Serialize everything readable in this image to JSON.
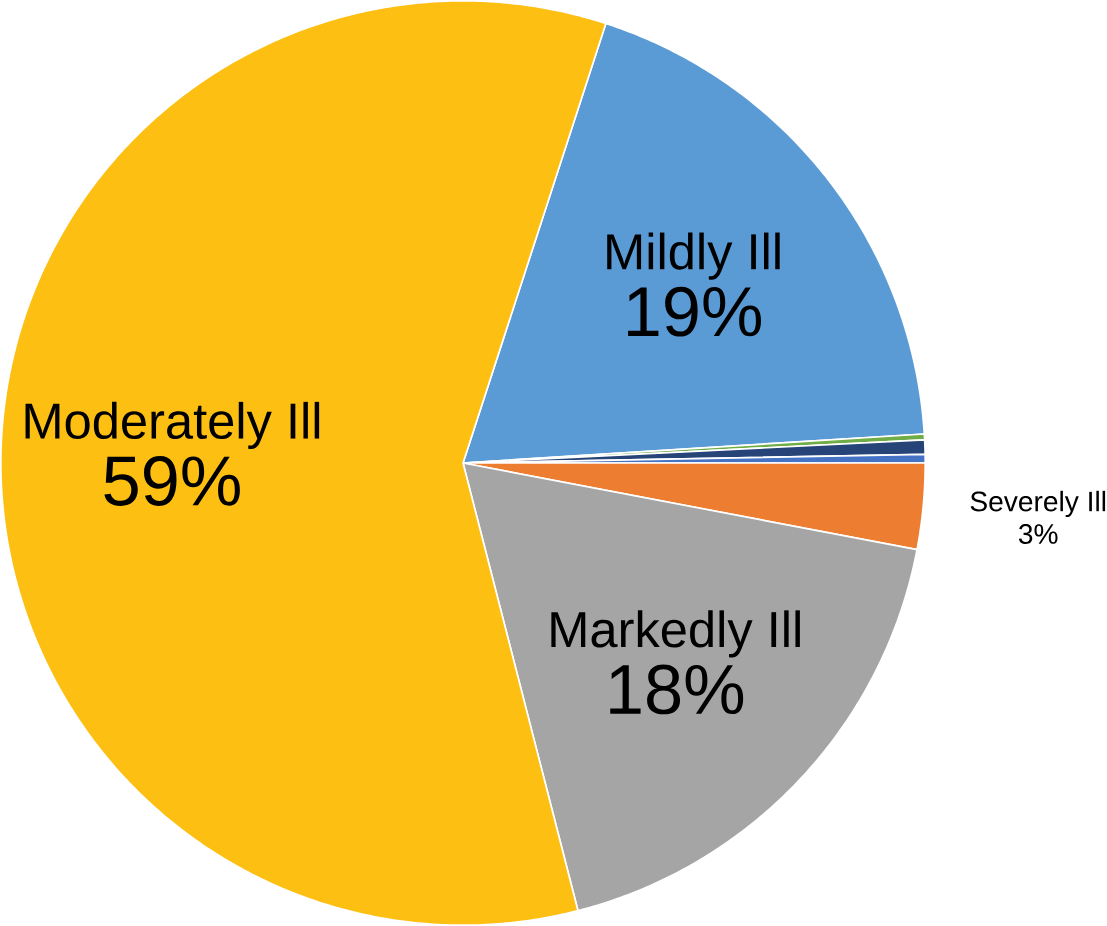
{
  "chart_data": {
    "type": "pie",
    "categories": [
      "Mildly Ill",
      null,
      null,
      null,
      "Severely Ill",
      "Markedly Ill",
      "Moderately Ill"
    ],
    "values": [
      19,
      0.2,
      0.5,
      0.3,
      3,
      18,
      59
    ],
    "value_labels": [
      "19%",
      null,
      null,
      null,
      "3%",
      "18%",
      "59%"
    ],
    "colors": [
      "#5b9bd5",
      "#70ad47",
      "#264478",
      "#4472c4",
      "#ed7d31",
      "#a5a5a5",
      "#fcbf12"
    ]
  }
}
